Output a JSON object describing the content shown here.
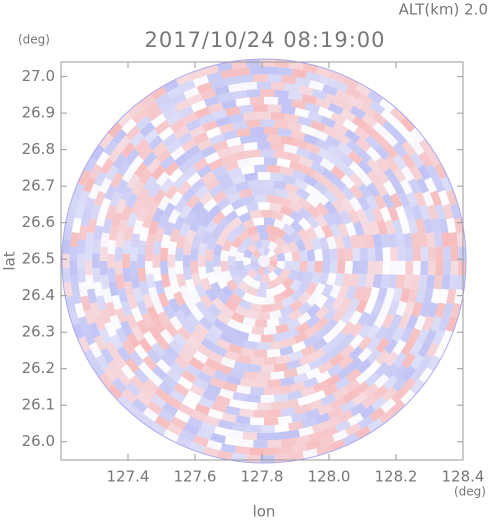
{
  "chart_data": {
    "type": "radar-ppi",
    "title": "2017/10/24 08:19:00",
    "subtitle": "ALT(km) 2.0",
    "x_label": "lon",
    "y_label": "lat",
    "x_unit": "(deg)",
    "y_unit": "(deg)",
    "xlim": [
      127.2,
      128.4
    ],
    "xticks": [
      127.4,
      127.6,
      127.8,
      {
        "value": 128.0,
        "label": "128.0"
      },
      128.2,
      128.4
    ],
    "ylim": [
      25.95,
      27.04
    ],
    "yticks": [
      {
        "value": 26.0,
        "label": "26.0"
      },
      26.1,
      26.2,
      26.3,
      26.4,
      26.5,
      26.6,
      26.7,
      26.8,
      26.9,
      {
        "value": 27.0,
        "label": "27.0"
      }
    ]
  }
}
